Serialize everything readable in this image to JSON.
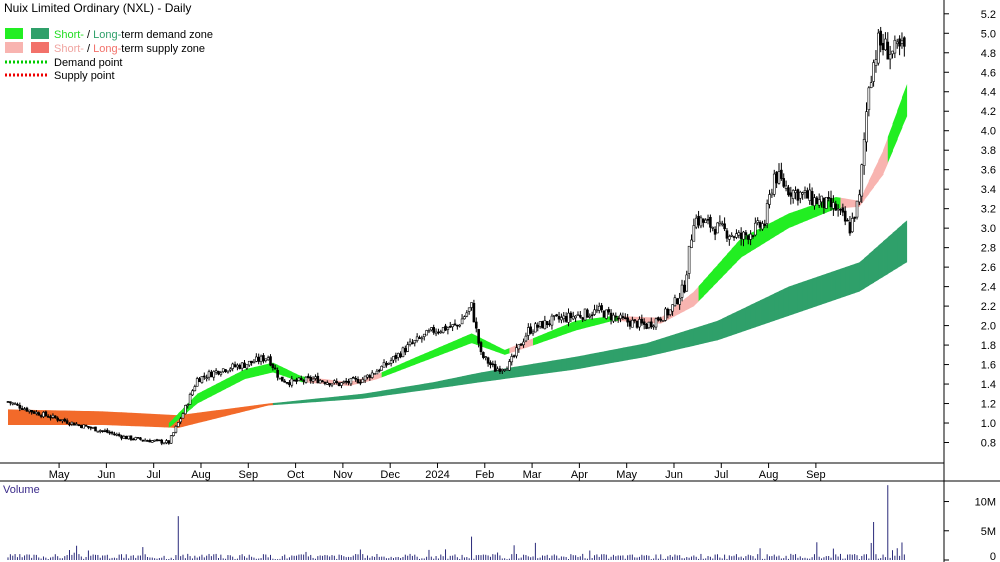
{
  "chart_data": {
    "type": "candlestick",
    "title": "Nuix Limited Ordinary (NXL) - Daily",
    "legend": [
      {
        "prefix": "Short-",
        "sep": " / ",
        "middle": "Long-",
        "suffix": "term demand zone",
        "short_color": "#22ee22",
        "long_color": "#2fa06a"
      },
      {
        "prefix": "Short-",
        "sep": " / ",
        "middle": "Long-",
        "suffix": "term supply zone",
        "short_color": "#f8b4b0",
        "long_color": "#f2716a"
      },
      {
        "label": "Demand point",
        "color": "#00cc00"
      },
      {
        "label": "Supply point",
        "color": "#ee0000"
      }
    ],
    "x_labels": [
      "May",
      "Jun",
      "Jul",
      "Aug",
      "Sep",
      "Oct",
      "Nov",
      "Dec",
      "2024",
      "Feb",
      "Mar",
      "Apr",
      "May",
      "Jun",
      "Jul",
      "Aug",
      "Sep"
    ],
    "y_ticks": [
      "0.8",
      "1.0",
      "1.2",
      "1.4",
      "1.6",
      "1.8",
      "2.0",
      "2.2",
      "2.4",
      "2.6",
      "2.8",
      "3.0",
      "3.2",
      "3.4",
      "3.6",
      "3.8",
      "4.0",
      "4.2",
      "4.4",
      "4.6",
      "4.8",
      "5.0",
      "5.2"
    ],
    "ylim": [
      0.6,
      5.28
    ],
    "price_path": [
      {
        "month": 0,
        "price": 1.22
      },
      {
        "month": 0.5,
        "price": 1.12
      },
      {
        "month": 1,
        "price": 1.05
      },
      {
        "month": 1.5,
        "price": 0.98
      },
      {
        "month": 2,
        "price": 0.92
      },
      {
        "month": 2.5,
        "price": 0.85
      },
      {
        "month": 3,
        "price": 0.82
      },
      {
        "month": 3.4,
        "price": 0.8
      },
      {
        "month": 3.7,
        "price": 1.1
      },
      {
        "month": 4,
        "price": 1.45
      },
      {
        "month": 4.5,
        "price": 1.55
      },
      {
        "month": 5,
        "price": 1.6
      },
      {
        "month": 5.5,
        "price": 1.68
      },
      {
        "month": 5.75,
        "price": 1.45
      },
      {
        "month": 6,
        "price": 1.42
      },
      {
        "month": 6.5,
        "price": 1.45
      },
      {
        "month": 7,
        "price": 1.4
      },
      {
        "month": 7.5,
        "price": 1.45
      },
      {
        "month": 8,
        "price": 1.6
      },
      {
        "month": 8.5,
        "price": 1.8
      },
      {
        "month": 9,
        "price": 1.95
      },
      {
        "month": 9.5,
        "price": 2.0
      },
      {
        "month": 9.8,
        "price": 2.2
      },
      {
        "month": 10,
        "price": 1.7
      },
      {
        "month": 10.3,
        "price": 1.55
      },
      {
        "month": 10.6,
        "price": 1.6
      },
      {
        "month": 11,
        "price": 1.95
      },
      {
        "month": 11.5,
        "price": 2.05
      },
      {
        "month": 12,
        "price": 2.1
      },
      {
        "month": 12.5,
        "price": 2.15
      },
      {
        "month": 13,
        "price": 2.05
      },
      {
        "month": 13.5,
        "price": 2.0
      },
      {
        "month": 14,
        "price": 2.15
      },
      {
        "month": 14.3,
        "price": 2.4
      },
      {
        "month": 14.5,
        "price": 3.1
      },
      {
        "month": 15,
        "price": 3.0
      },
      {
        "month": 15.5,
        "price": 2.9
      },
      {
        "month": 16,
        "price": 3.05
      },
      {
        "month": 16.2,
        "price": 3.55
      },
      {
        "month": 16.5,
        "price": 3.4
      },
      {
        "month": 17,
        "price": 3.3
      },
      {
        "month": 17.5,
        "price": 3.2
      },
      {
        "month": 17.8,
        "price": 3.0
      },
      {
        "month": 18,
        "price": 3.3
      },
      {
        "month": 18.2,
        "price": 4.5
      },
      {
        "month": 18.4,
        "price": 4.9
      },
      {
        "month": 18.7,
        "price": 4.8
      },
      {
        "month": 19,
        "price": 4.85
      }
    ],
    "short_term_zone": [
      {
        "month": 3.4,
        "top": 1.0,
        "bottom": 0.95,
        "kind": "demand"
      },
      {
        "month": 4,
        "top": 1.3,
        "bottom": 1.2,
        "kind": "demand"
      },
      {
        "month": 5,
        "top": 1.55,
        "bottom": 1.45,
        "kind": "demand"
      },
      {
        "month": 5.6,
        "top": 1.62,
        "bottom": 1.52,
        "kind": "demand"
      },
      {
        "month": 6.2,
        "top": 1.48,
        "bottom": 1.42,
        "kind": "supply"
      },
      {
        "month": 7.2,
        "top": 1.42,
        "bottom": 1.38,
        "kind": "supply"
      },
      {
        "month": 7.8,
        "top": 1.5,
        "bottom": 1.45,
        "kind": "demand"
      },
      {
        "month": 8.5,
        "top": 1.65,
        "bottom": 1.58,
        "kind": "demand"
      },
      {
        "month": 9.8,
        "top": 1.92,
        "bottom": 1.82,
        "kind": "demand"
      },
      {
        "month": 10.5,
        "top": 1.75,
        "bottom": 1.7,
        "kind": "supply"
      },
      {
        "month": 11,
        "top": 1.85,
        "bottom": 1.78,
        "kind": "demand"
      },
      {
        "month": 12,
        "top": 2.05,
        "bottom": 1.95,
        "kind": "demand"
      },
      {
        "month": 12.8,
        "top": 2.1,
        "bottom": 2.05,
        "kind": "supply"
      },
      {
        "month": 13.8,
        "top": 2.08,
        "bottom": 2.02,
        "kind": "supply"
      },
      {
        "month": 14.5,
        "top": 2.35,
        "bottom": 2.2,
        "kind": "demand"
      },
      {
        "month": 15.5,
        "top": 2.9,
        "bottom": 2.7,
        "kind": "demand"
      },
      {
        "month": 16.5,
        "top": 3.15,
        "bottom": 3.0,
        "kind": "demand"
      },
      {
        "month": 17.5,
        "top": 3.32,
        "bottom": 3.2,
        "kind": "supply"
      },
      {
        "month": 18,
        "top": 3.28,
        "bottom": 3.22,
        "kind": "supply"
      },
      {
        "month": 18.5,
        "top": 3.8,
        "bottom": 3.55,
        "kind": "demand"
      },
      {
        "month": 19,
        "top": 4.48,
        "bottom": 4.15,
        "kind": "demand"
      }
    ],
    "long_term_zone": [
      {
        "month": 0,
        "top": 1.14,
        "bottom": 0.98,
        "kind": "supply"
      },
      {
        "month": 2,
        "top": 1.12,
        "bottom": 0.98,
        "kind": "supply"
      },
      {
        "month": 3.6,
        "top": 1.08,
        "bottom": 0.95,
        "kind": "supply"
      },
      {
        "month": 5.5,
        "top": 1.2,
        "bottom": 1.18,
        "kind": "demand"
      },
      {
        "month": 7.5,
        "top": 1.3,
        "bottom": 1.25,
        "kind": "demand"
      },
      {
        "month": 9,
        "top": 1.42,
        "bottom": 1.35,
        "kind": "demand"
      },
      {
        "month": 10,
        "top": 1.52,
        "bottom": 1.42,
        "kind": "demand"
      },
      {
        "month": 12,
        "top": 1.68,
        "bottom": 1.55,
        "kind": "demand"
      },
      {
        "month": 13.5,
        "top": 1.82,
        "bottom": 1.68,
        "kind": "demand"
      },
      {
        "month": 15,
        "top": 2.05,
        "bottom": 1.85,
        "kind": "demand"
      },
      {
        "month": 16.5,
        "top": 2.4,
        "bottom": 2.1,
        "kind": "demand"
      },
      {
        "month": 18,
        "top": 2.65,
        "bottom": 2.35,
        "kind": "demand"
      },
      {
        "month": 19,
        "top": 3.08,
        "bottom": 2.65,
        "kind": "demand"
      }
    ],
    "volume": {
      "label": "Volume",
      "y_ticks": [
        "0",
        "5M",
        "10M"
      ],
      "ylim": [
        0,
        13
      ],
      "spikes": [
        {
          "month": 3.6,
          "value": 7.5
        },
        {
          "month": 9.8,
          "value": 4.0
        },
        {
          "month": 18.3,
          "value": 6.5
        },
        {
          "month": 18.6,
          "value": 12.8
        },
        {
          "month": 18.9,
          "value": 3.0
        }
      ]
    },
    "grid": false,
    "colors": {
      "up": "#000000",
      "down": "#000000",
      "short_demand": "#22ee22",
      "long_demand": "#2fa06a",
      "short_supply": "#f8b4b0",
      "long_supply": "#f2716a",
      "orange": "#f26a2a"
    }
  }
}
